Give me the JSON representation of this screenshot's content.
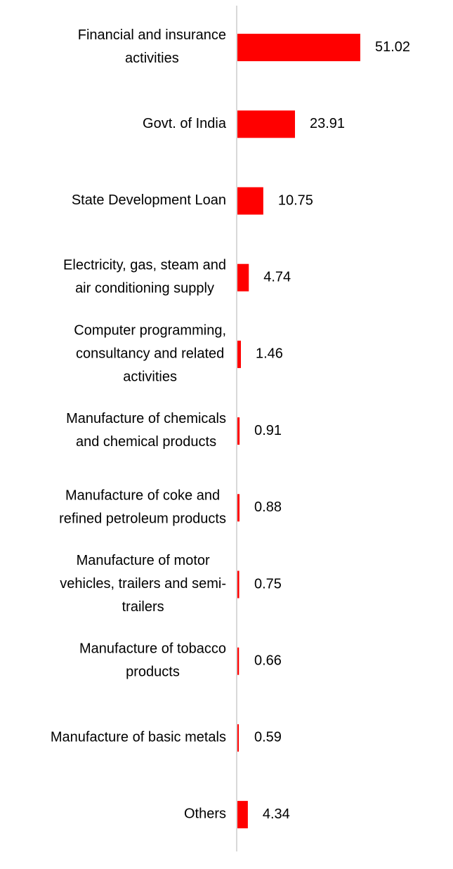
{
  "chart_data": {
    "type": "bar",
    "orientation": "horizontal",
    "title": "",
    "xlabel": "",
    "ylabel": "",
    "categories": [
      [
        "Financial and insurance",
        "activities"
      ],
      [
        "Govt. of India"
      ],
      [
        "State Development Loan"
      ],
      [
        "Electricity, gas, steam and",
        "air conditioning supply"
      ],
      [
        "Computer programming,",
        "consultancy and related",
        "activities"
      ],
      [
        "Manufacture of chemicals",
        "and chemical products"
      ],
      [
        "Manufacture of coke and",
        "refined petroleum products"
      ],
      [
        "Manufacture of motor",
        "vehicles, trailers and semi-",
        "trailers"
      ],
      [
        "Manufacture of tobacco",
        "products"
      ],
      [
        "Manufacture of basic metals"
      ],
      [
        "Others"
      ]
    ],
    "values": [
      51.02,
      23.91,
      10.75,
      4.74,
      1.46,
      0.91,
      0.88,
      0.75,
      0.66,
      0.59,
      4.34
    ],
    "value_labels": [
      "51.02",
      "23.91",
      "10.75",
      "4.74",
      "1.46",
      "0.91",
      "0.88",
      "0.75",
      "0.66",
      "0.59",
      "4.34"
    ],
    "xlim": [
      0,
      90
    ],
    "grid": false,
    "legend": "none",
    "bar_color": "#ff0000",
    "axis_color": "#d9d9d9"
  }
}
